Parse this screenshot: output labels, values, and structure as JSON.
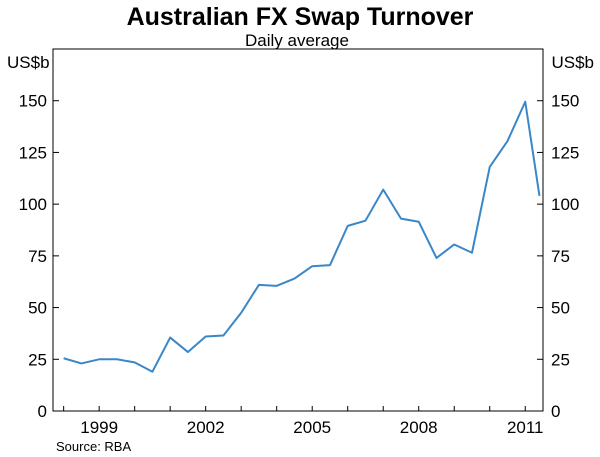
{
  "chart_data": {
    "type": "line",
    "title": "Australian FX Swap Turnover",
    "subtitle": "Daily average",
    "y_unit_left": "US$b",
    "y_unit_right": "US$b",
    "source": "Source: RBA",
    "ylim": [
      0,
      175
    ],
    "xlim": [
      1997.7,
      2011.5
    ],
    "y_ticks": [
      0,
      25,
      50,
      75,
      100,
      125,
      150
    ],
    "x_tick_labels": [
      "1999",
      "2002",
      "2005",
      "2008",
      "2011"
    ],
    "x_tick_values": [
      1999.0,
      2002.0,
      2005.0,
      2008.0,
      2011.0
    ],
    "grid": false,
    "line_color": "#3a87c8",
    "series": [
      {
        "x": [
          1998.0,
          1998.5,
          1999.0,
          1999.5,
          2000.0,
          2000.5,
          2001.0,
          2001.5,
          2002.0,
          2002.5,
          2003.0,
          2003.5,
          2004.0,
          2004.5,
          2005.0,
          2005.5,
          2006.0,
          2006.5,
          2007.0,
          2007.5,
          2008.0,
          2008.5,
          2009.0,
          2009.5,
          2010.0,
          2010.5,
          2011.0,
          2011.4
        ],
        "y": [
          25.5,
          23,
          25,
          25,
          23.5,
          19,
          35.5,
          28.5,
          36,
          36.5,
          47.5,
          61,
          60.5,
          64,
          70,
          70.5,
          89.5,
          92,
          107,
          93,
          91.5,
          74,
          80.5,
          76.5,
          118,
          130.5,
          149.5,
          104
        ]
      }
    ]
  }
}
